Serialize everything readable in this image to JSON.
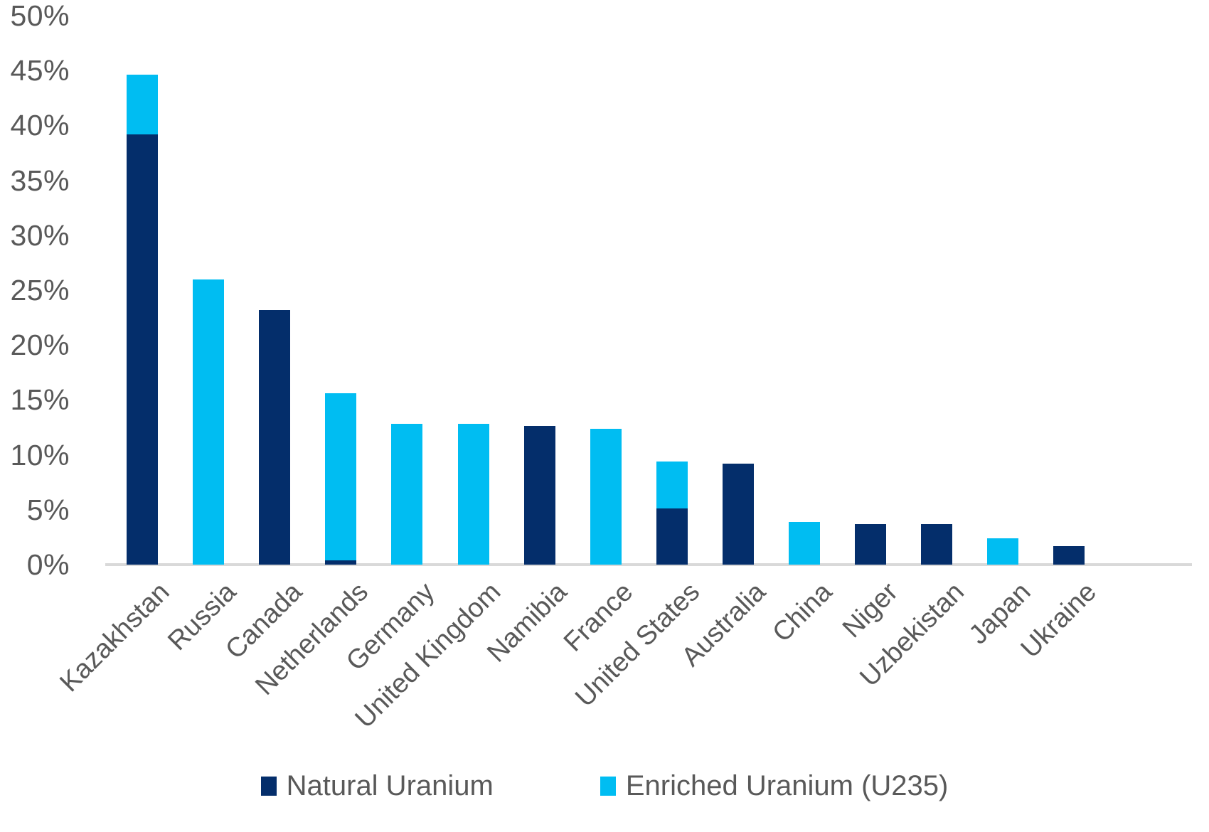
{
  "chart_data": {
    "type": "bar",
    "stacked": true,
    "title": "",
    "categories": [
      "Kazakhstan",
      "Russia",
      "Canada",
      "Netherlands",
      "Germany",
      "United Kingdom",
      "Namibia",
      "France",
      "United States",
      "Australia",
      "China",
      "Niger",
      "Uzbekistan",
      "Japan",
      "Ukraine"
    ],
    "series": [
      {
        "name": "Natural Uranium",
        "color": "#042E6B",
        "values": [
          39.2,
          0,
          23.2,
          0.4,
          0,
          0,
          12.6,
          0,
          5.1,
          9.2,
          0,
          3.7,
          3.7,
          0,
          1.7
        ]
      },
      {
        "name": "Enriched Uranium (U235)",
        "color": "#00BDF2",
        "values": [
          5.4,
          26.0,
          0,
          15.2,
          12.8,
          12.8,
          0,
          12.4,
          4.3,
          0,
          3.9,
          0,
          0,
          2.4,
          0
        ]
      }
    ],
    "ylim": [
      0,
      50
    ],
    "y_tick_step": 5,
    "y_tick_labels": [
      "0%",
      "5%",
      "10%",
      "15%",
      "20%",
      "25%",
      "30%",
      "35%",
      "40%",
      "45%",
      "50%"
    ],
    "x_tick_rotation_deg": 45,
    "grid": false,
    "legend_position": "bottom"
  },
  "colors": {
    "background": "#FFFFFF",
    "axis_text": "#595959",
    "axis_line": "#D9D9D9",
    "natural_uranium": "#042E6B",
    "enriched_uranium": "#00BDF2"
  }
}
